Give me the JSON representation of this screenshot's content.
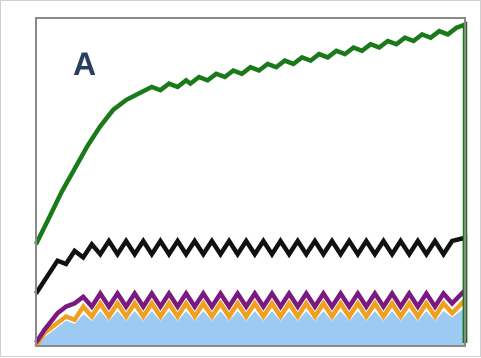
{
  "chart_data": {
    "type": "line",
    "panel_label": "A",
    "title": "",
    "xlabel": "",
    "ylabel": "",
    "xlim": [
      0,
      100
    ],
    "ylim": [
      0,
      100
    ],
    "grid": false,
    "legend": "none",
    "series": [
      {
        "color": "#1a7a1a",
        "x": [
          0,
          3,
          6,
          9,
          12,
          15,
          18,
          21,
          24,
          27,
          29,
          31,
          33,
          35,
          36,
          38,
          40,
          42,
          44,
          46,
          48,
          50,
          52,
          54,
          56,
          58,
          60,
          62,
          64,
          66,
          68,
          70,
          72,
          74,
          76,
          78,
          80,
          82,
          84,
          86,
          88,
          90,
          92,
          94,
          96,
          98,
          100,
          100
        ],
        "y": [
          31,
          39,
          47,
          54,
          61,
          67,
          72,
          75,
          77,
          79,
          78,
          80,
          79,
          81,
          80,
          82,
          81,
          83,
          82,
          84,
          83,
          85,
          84,
          86,
          85,
          87,
          86,
          88,
          87,
          89,
          88,
          90,
          89,
          91,
          90,
          92,
          91,
          93,
          92,
          94,
          93,
          95,
          94,
          96,
          95,
          97,
          98,
          1
        ]
      },
      {
        "color": "#111111",
        "x": [
          0,
          3,
          5,
          7,
          9,
          11,
          13,
          15,
          17,
          19,
          21,
          23,
          25,
          27,
          29,
          31,
          33,
          35,
          37,
          39,
          41,
          43,
          45,
          47,
          49,
          51,
          53,
          55,
          57,
          59,
          61,
          63,
          65,
          67,
          69,
          71,
          73,
          75,
          77,
          79,
          81,
          83,
          85,
          87,
          89,
          91,
          93,
          95,
          97,
          100,
          100
        ],
        "y": [
          16,
          22,
          26,
          25,
          29,
          27,
          31,
          28,
          32,
          28,
          32,
          28,
          32,
          28,
          32,
          28,
          32,
          28,
          32,
          28,
          32,
          28,
          32,
          28,
          32,
          28,
          32,
          28,
          32,
          28,
          32,
          28,
          32,
          28,
          32,
          28,
          32,
          28,
          32,
          28,
          32,
          28,
          32,
          28,
          32,
          28,
          32,
          28,
          32,
          33,
          1
        ]
      },
      {
        "color": "#7a1a80",
        "x": [
          0,
          2,
          5,
          7,
          9,
          11,
          13,
          15,
          17,
          19,
          21,
          23,
          25,
          27,
          29,
          31,
          33,
          35,
          37,
          39,
          41,
          43,
          45,
          47,
          49,
          51,
          53,
          55,
          57,
          59,
          61,
          63,
          65,
          67,
          69,
          71,
          73,
          75,
          77,
          79,
          81,
          83,
          85,
          87,
          89,
          91,
          93,
          95,
          97,
          100
        ],
        "y": [
          1,
          5,
          10,
          12,
          13,
          15,
          12,
          16,
          12,
          16,
          12,
          16,
          12,
          16,
          12,
          16,
          12,
          16,
          12,
          16,
          12,
          16,
          12,
          16,
          12,
          16,
          12,
          16,
          12,
          16,
          12,
          16,
          12,
          16,
          12,
          16,
          12,
          16,
          12,
          16,
          12,
          16,
          12,
          16,
          12,
          16,
          12,
          16,
          13,
          17
        ]
      },
      {
        "color": "#f0a020",
        "x": [
          0,
          2,
          5,
          7,
          9,
          11,
          13,
          15,
          17,
          19,
          21,
          23,
          25,
          27,
          29,
          31,
          33,
          35,
          37,
          39,
          41,
          43,
          45,
          47,
          49,
          51,
          53,
          55,
          57,
          59,
          61,
          63,
          65,
          67,
          69,
          71,
          73,
          75,
          77,
          79,
          81,
          83,
          85,
          87,
          89,
          91,
          93,
          95,
          97,
          100
        ],
        "y": [
          0,
          4,
          7,
          9,
          8,
          12,
          9,
          13,
          9,
          13,
          9,
          13,
          9,
          13,
          9,
          13,
          9,
          13,
          9,
          13,
          9,
          13,
          9,
          13,
          9,
          13,
          9,
          13,
          9,
          13,
          9,
          13,
          9,
          13,
          9,
          13,
          9,
          13,
          9,
          13,
          9,
          13,
          9,
          13,
          9,
          13,
          9,
          13,
          10,
          14
        ]
      },
      {
        "color": "#9ccaf2",
        "x": [
          0,
          2,
          5,
          7,
          9,
          11,
          13,
          15,
          17,
          19,
          21,
          23,
          25,
          27,
          29,
          31,
          33,
          35,
          37,
          39,
          41,
          43,
          45,
          47,
          49,
          51,
          53,
          55,
          57,
          59,
          61,
          63,
          65,
          67,
          69,
          71,
          73,
          75,
          77,
          79,
          81,
          83,
          85,
          87,
          89,
          91,
          93,
          95,
          97,
          100
        ],
        "y": [
          0,
          3,
          6,
          8,
          7,
          10,
          8,
          11,
          8,
          11,
          8,
          11,
          8,
          11,
          8,
          11,
          8,
          11,
          8,
          11,
          8,
          11,
          8,
          11,
          8,
          11,
          8,
          11,
          8,
          11,
          8,
          11,
          8,
          11,
          8,
          11,
          8,
          11,
          8,
          11,
          8,
          11,
          8,
          11,
          8,
          11,
          8,
          11,
          9,
          12
        ],
        "fill": "area"
      }
    ],
    "colors": {
      "frame": "#8a8a8a",
      "panel_label": "#2a3f5f"
    }
  }
}
